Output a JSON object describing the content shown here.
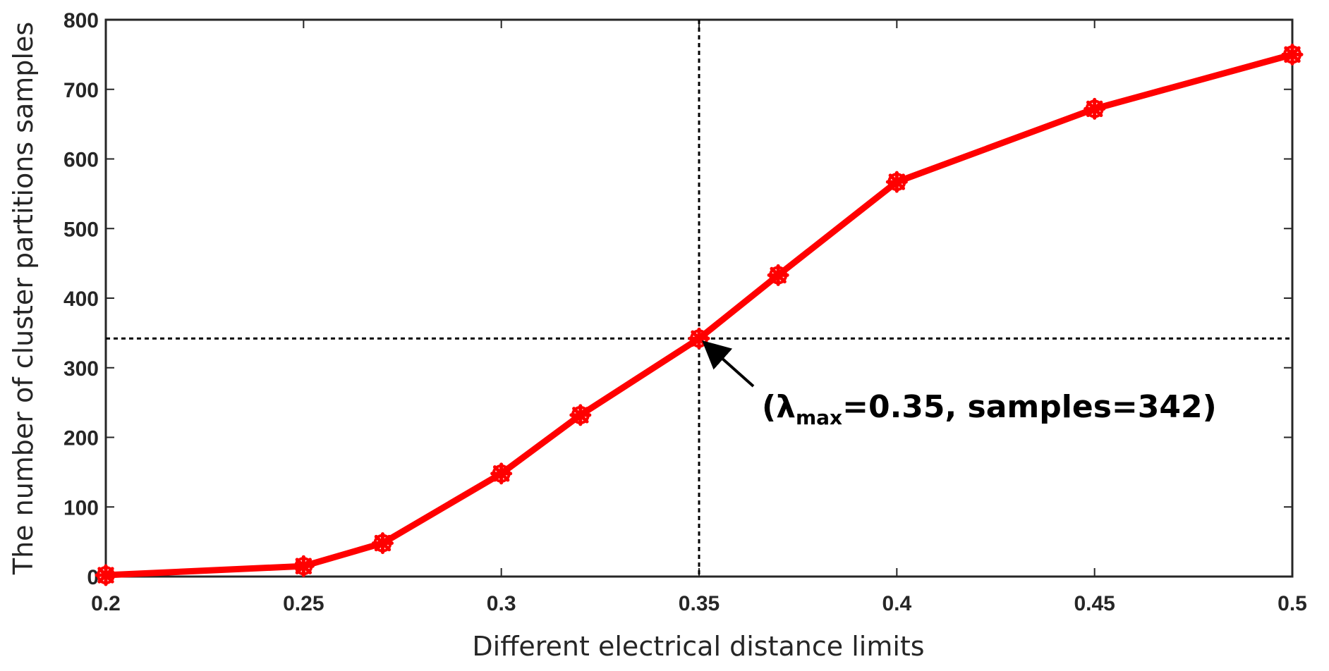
{
  "chart_data": {
    "type": "line",
    "xlabel": "Different electrical distance limits",
    "ylabel": "The number of cluster partitions samples",
    "xlim": [
      0.2,
      0.5
    ],
    "ylim": [
      0,
      800
    ],
    "xticks": [
      "0.2",
      "0.25",
      "0.3",
      "0.35",
      "0.4",
      "0.45",
      "0.5"
    ],
    "yticks": [
      "0",
      "100",
      "200",
      "300",
      "400",
      "500",
      "600",
      "700",
      "800"
    ],
    "grid": false,
    "series": [
      {
        "x": [
          0.2,
          0.25,
          0.27,
          0.3,
          0.32,
          0.35,
          0.37,
          0.4,
          0.45,
          0.5
        ],
        "y": [
          2,
          15,
          48,
          148,
          232,
          342,
          433,
          567,
          672,
          750
        ],
        "color": "#ff0000",
        "marker": "asterisk"
      }
    ],
    "reference_lines": {
      "x": 0.35,
      "y": 342,
      "style": "dotted",
      "color": "#000000"
    },
    "annotation": {
      "prefix": "(λ",
      "subscript": "max",
      "suffix": "=0.35, samples=342)",
      "target_x": 0.35,
      "target_y": 342
    }
  }
}
